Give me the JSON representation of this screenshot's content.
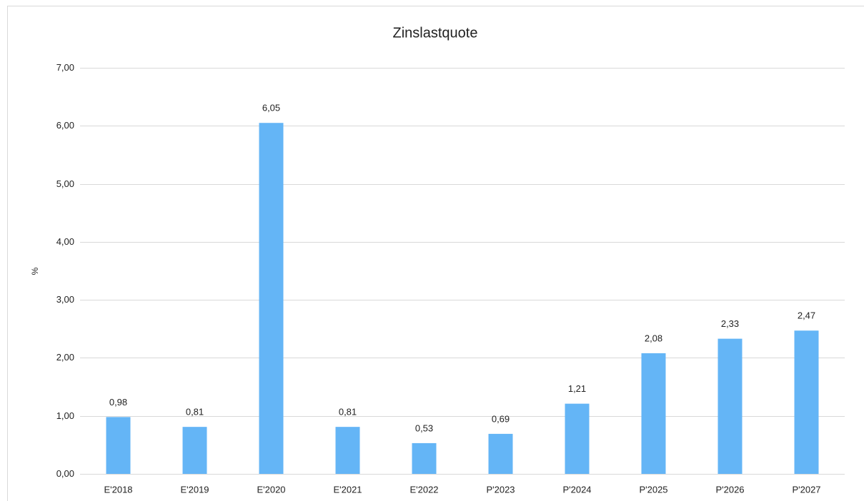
{
  "chart_data": {
    "type": "bar",
    "title": "Zinslastquote",
    "y_label": "%",
    "categories": [
      "E'2018",
      "E'2019",
      "E'2020",
      "E'2021",
      "E'2022",
      "P'2023",
      "P'2024",
      "P'2025",
      "P'2026",
      "P'2027"
    ],
    "values": [
      0.98,
      0.81,
      6.05,
      0.81,
      0.53,
      0.69,
      1.21,
      2.08,
      2.33,
      2.47
    ],
    "value_labels": [
      "0,98",
      "0,81",
      "6,05",
      "0,81",
      "0,53",
      "0,69",
      "1,21",
      "2,08",
      "2,33",
      "2,47"
    ],
    "color": "#64b5f6",
    "ylim": [
      0,
      7
    ],
    "yticks": [
      {
        "value": 0,
        "label": "0,00"
      },
      {
        "value": 1,
        "label": "1,00"
      },
      {
        "value": 2,
        "label": "2,00"
      },
      {
        "value": 3,
        "label": "3,00"
      },
      {
        "value": 4,
        "label": "4,00"
      },
      {
        "value": 5,
        "label": "5,00"
      },
      {
        "value": 6,
        "label": "6,00"
      },
      {
        "value": 7,
        "label": "7,00"
      }
    ],
    "grid": true
  }
}
